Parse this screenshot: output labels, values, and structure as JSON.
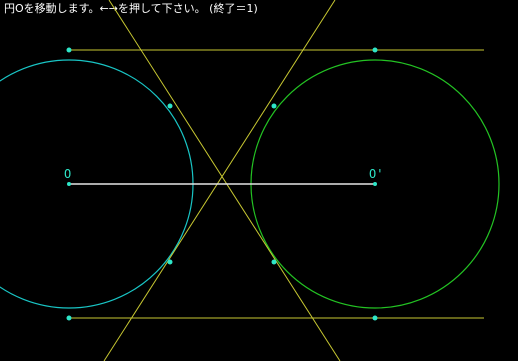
{
  "instruction": {
    "text": "円Oを移動します。←→を押して下さい。 (終了＝1)"
  },
  "labels": {
    "left_center": "O",
    "right_center": "O'"
  },
  "colors": {
    "background": "#000000",
    "left_circle": "#19c5c5",
    "right_circle": "#23c323",
    "tangent_lines": "#c8c832",
    "center_segment": "#e6e6e6",
    "points": "#2ee6c8",
    "text": "#ffffff"
  }
}
